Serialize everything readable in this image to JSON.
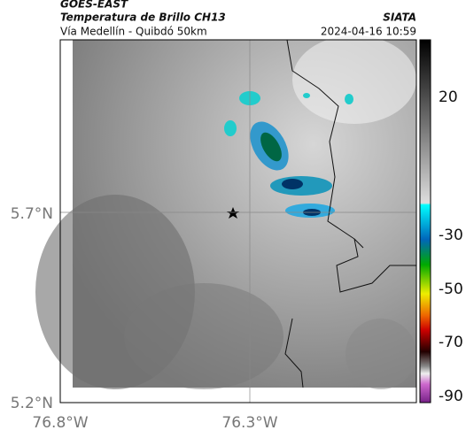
{
  "header": {
    "satellite": "GOES-EAST",
    "title": "Temperatura de Brillo CH13",
    "subtitle": "Vía Medellín - Quibdó 50km",
    "source": "SIATA",
    "datetime": "2024-04-16 10:59"
  },
  "axes": {
    "lat_labels": [
      "5.7°N",
      "5.2°N"
    ],
    "lon_labels": [
      "76.8°W",
      "76.3°W"
    ]
  },
  "colorbar": {
    "labels": [
      "20",
      "-30",
      "-50",
      "-70",
      "-90"
    ]
  }
}
